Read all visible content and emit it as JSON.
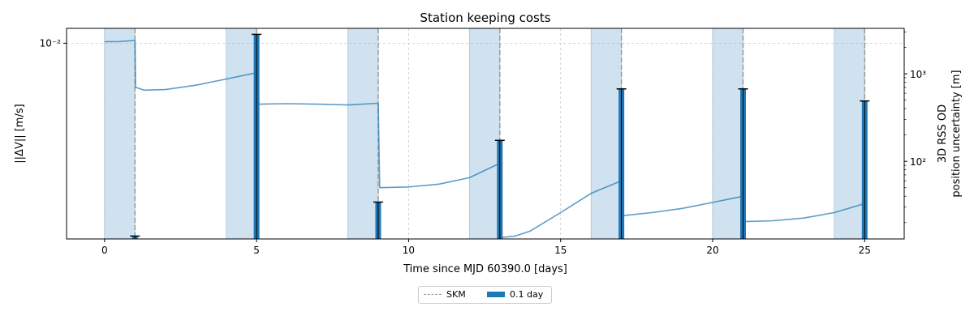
{
  "chart_data": {
    "type": "bar",
    "title": "Station keeping costs",
    "xlabel": "Time since MJD 60390.0 [days]",
    "ylabel": "||ΔV|| [m/s]",
    "y2label_line1": "3D RSS OD",
    "y2label_line2": "position uncertainty [m]",
    "xlim": [
      -1.25,
      26.3
    ],
    "ylim": [
      0.00225,
      0.0112
    ],
    "y_scale": "log",
    "y2lim": [
      13,
      3300
    ],
    "y2_scale": "log",
    "grid": true,
    "x_ticks": [
      0,
      5,
      10,
      15,
      20,
      25
    ],
    "x_tick_labels": [
      "0",
      "5",
      "10",
      "15",
      "20",
      "25"
    ],
    "y_ticks": [
      0.01
    ],
    "y_tick_labels": [
      "10⁻²"
    ],
    "y2_ticks": [
      100,
      1000
    ],
    "y2_tick_labels": [
      "10²",
      "10³"
    ],
    "bars": {
      "name": "0.1 day",
      "color": "#1f77b4",
      "x": [
        1,
        5,
        9,
        13,
        17,
        21,
        25
      ],
      "values": [
        0.0023,
        0.0107,
        0.00298,
        0.00477,
        0.00706,
        0.00706,
        0.00644
      ]
    },
    "skm": {
      "name": "SKM",
      "color": "#999999",
      "x": [
        1,
        5,
        9,
        13,
        17,
        21,
        25
      ]
    },
    "od_windows": {
      "color": "#1f77b4",
      "intervals": [
        [
          0,
          1
        ],
        [
          4,
          5
        ],
        [
          8,
          9
        ],
        [
          12,
          13
        ],
        [
          16,
          17
        ],
        [
          20,
          21
        ],
        [
          24,
          25
        ]
      ]
    },
    "uncertainty_series": {
      "axis": "right",
      "color": "#1f77b4",
      "segments": [
        {
          "x": [
            0,
            0.5,
            0.95,
            1.0
          ],
          "y": [
            2320,
            2330,
            2400,
            2400
          ]
        },
        {
          "x": [
            1.0,
            1.02,
            1.3,
            2,
            3,
            4,
            5
          ],
          "y": [
            2400,
            700,
            650,
            660,
            740,
            870,
            1030
          ]
        },
        {
          "x": [
            5,
            5.05,
            6,
            7,
            8,
            9
          ],
          "y": [
            1030,
            450,
            455,
            450,
            440,
            460
          ]
        },
        {
          "x": [
            9,
            9.05,
            10,
            11,
            12,
            13
          ],
          "y": [
            460,
            50,
            51,
            55,
            65,
            95
          ]
        },
        {
          "x": [
            13,
            13.05,
            13.5,
            14,
            15,
            16,
            17
          ],
          "y": [
            95,
            13.5,
            14,
            16,
            26,
            43,
            60
          ]
        },
        {
          "x": [
            17,
            17.05,
            18,
            19,
            20,
            21
          ],
          "y": [
            60,
            24,
            26,
            29,
            34,
            40
          ]
        },
        {
          "x": [
            21,
            21.05,
            22,
            23,
            24,
            25
          ],
          "y": [
            40,
            20.5,
            21,
            22.5,
            26,
            33
          ]
        }
      ]
    }
  }
}
